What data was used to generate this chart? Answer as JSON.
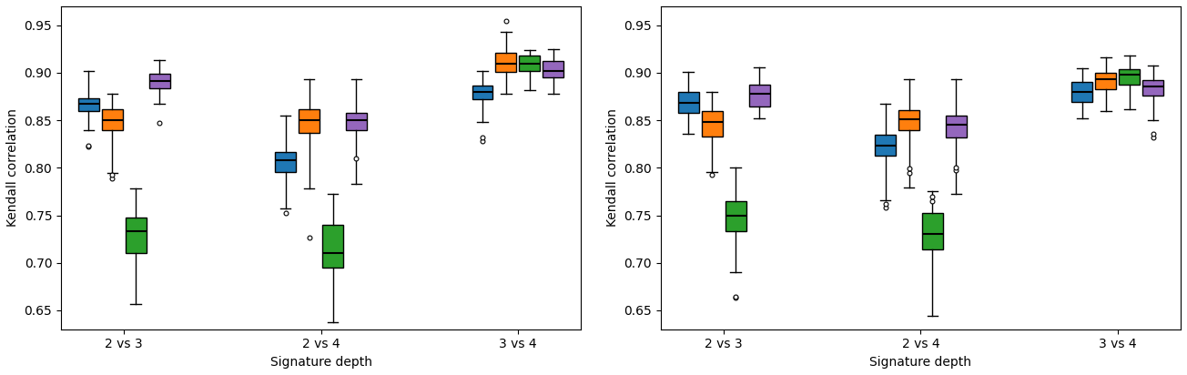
{
  "xlabel": "Signature depth",
  "ylabel": "Kendall correlation",
  "categories": [
    "2 vs 3",
    "2 vs 4",
    "3 vs 4"
  ],
  "colors": [
    "#1f77b4",
    "#ff7f0e",
    "#2ca02c",
    "#9467bd"
  ],
  "ylim": [
    0.63,
    0.97
  ],
  "yticks": [
    0.65,
    0.7,
    0.75,
    0.8,
    0.85,
    0.9,
    0.95
  ],
  "left": {
    "box_data": [
      [
        {
          "med": 0.867,
          "q1": 0.86,
          "q3": 0.873,
          "whislo": 0.84,
          "whishi": 0.902,
          "fliers": [
            0.822,
            0.823
          ]
        },
        {
          "med": 0.85,
          "q1": 0.84,
          "q3": 0.862,
          "whislo": 0.795,
          "whishi": 0.878,
          "fliers": [
            0.789,
            0.793
          ]
        },
        {
          "med": 0.733,
          "q1": 0.71,
          "q3": 0.748,
          "whislo": 0.657,
          "whishi": 0.778,
          "fliers": []
        },
        {
          "med": 0.891,
          "q1": 0.884,
          "q3": 0.899,
          "whislo": 0.867,
          "whishi": 0.913,
          "fliers": [
            0.847
          ]
        }
      ],
      [
        {
          "med": 0.808,
          "q1": 0.796,
          "q3": 0.817,
          "whislo": 0.757,
          "whishi": 0.855,
          "fliers": [
            0.752
          ]
        },
        {
          "med": 0.85,
          "q1": 0.837,
          "q3": 0.862,
          "whislo": 0.778,
          "whishi": 0.893,
          "fliers": [
            0.727
          ]
        },
        {
          "med": 0.71,
          "q1": 0.695,
          "q3": 0.74,
          "whislo": 0.637,
          "whishi": 0.773,
          "fliers": []
        },
        {
          "med": 0.85,
          "q1": 0.84,
          "q3": 0.858,
          "whislo": 0.783,
          "whishi": 0.893,
          "fliers": [
            0.81
          ]
        }
      ],
      [
        {
          "med": 0.88,
          "q1": 0.872,
          "q3": 0.887,
          "whislo": 0.848,
          "whishi": 0.902,
          "fliers": [
            0.828,
            0.832
          ]
        },
        {
          "med": 0.91,
          "q1": 0.901,
          "q3": 0.921,
          "whislo": 0.878,
          "whishi": 0.943,
          "fliers": [
            0.955
          ]
        },
        {
          "med": 0.91,
          "q1": 0.902,
          "q3": 0.918,
          "whislo": 0.882,
          "whishi": 0.924,
          "fliers": []
        },
        {
          "med": 0.902,
          "q1": 0.895,
          "q3": 0.912,
          "whislo": 0.878,
          "whishi": 0.925,
          "fliers": []
        }
      ]
    ]
  },
  "right": {
    "box_data": [
      [
        {
          "med": 0.868,
          "q1": 0.858,
          "q3": 0.88,
          "whislo": 0.836,
          "whishi": 0.901,
          "fliers": []
        },
        {
          "med": 0.848,
          "q1": 0.833,
          "q3": 0.86,
          "whislo": 0.796,
          "whishi": 0.88,
          "fliers": [
            0.793
          ]
        },
        {
          "med": 0.75,
          "q1": 0.733,
          "q3": 0.765,
          "whislo": 0.69,
          "whishi": 0.8,
          "fliers": [
            0.663,
            0.664
          ]
        },
        {
          "med": 0.878,
          "q1": 0.865,
          "q3": 0.888,
          "whislo": 0.852,
          "whishi": 0.906,
          "fliers": []
        }
      ],
      [
        {
          "med": 0.823,
          "q1": 0.813,
          "q3": 0.835,
          "whislo": 0.766,
          "whishi": 0.867,
          "fliers": [
            0.758,
            0.762
          ]
        },
        {
          "med": 0.851,
          "q1": 0.84,
          "q3": 0.861,
          "whislo": 0.779,
          "whishi": 0.893,
          "fliers": [
            0.795,
            0.799
          ]
        },
        {
          "med": 0.73,
          "q1": 0.714,
          "q3": 0.752,
          "whislo": 0.644,
          "whishi": 0.775,
          "fliers": [
            0.765,
            0.77
          ]
        },
        {
          "med": 0.845,
          "q1": 0.832,
          "q3": 0.855,
          "whislo": 0.773,
          "whishi": 0.893,
          "fliers": [
            0.797,
            0.8
          ]
        }
      ],
      [
        {
          "med": 0.88,
          "q1": 0.869,
          "q3": 0.89,
          "whislo": 0.852,
          "whishi": 0.905,
          "fliers": []
        },
        {
          "med": 0.893,
          "q1": 0.883,
          "q3": 0.9,
          "whislo": 0.86,
          "whishi": 0.916,
          "fliers": []
        },
        {
          "med": 0.898,
          "q1": 0.888,
          "q3": 0.904,
          "whislo": 0.862,
          "whishi": 0.918,
          "fliers": []
        },
        {
          "med": 0.886,
          "q1": 0.876,
          "q3": 0.892,
          "whislo": 0.85,
          "whishi": 0.908,
          "fliers": [
            0.832,
            0.836
          ]
        }
      ]
    ]
  }
}
